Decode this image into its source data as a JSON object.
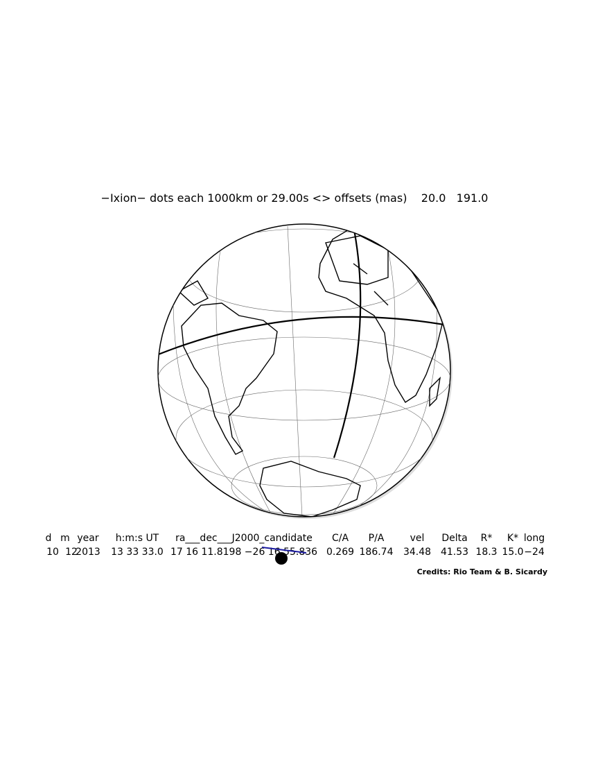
{
  "title": "−Ixion− dots each 1000km or 29.00s <> offsets (mas)    20.0   191.0",
  "table": {
    "header": [
      "d",
      "m",
      "year",
      "h:m:s UT",
      "ra___dec___J2000_candidate",
      "C/A",
      "P/A",
      "vel",
      "Delta",
      "R*",
      "K*",
      "long"
    ],
    "row": [
      "10",
      "12",
      "2013",
      "13 33 33.0",
      "17 16 11.8198 −26 16 55.836",
      "0.269",
      "186.74",
      "34.48",
      "41.53",
      "18.3",
      "15.0",
      "−24"
    ]
  },
  "credits": "Credits: Rio Team & B. Sicardy"
}
